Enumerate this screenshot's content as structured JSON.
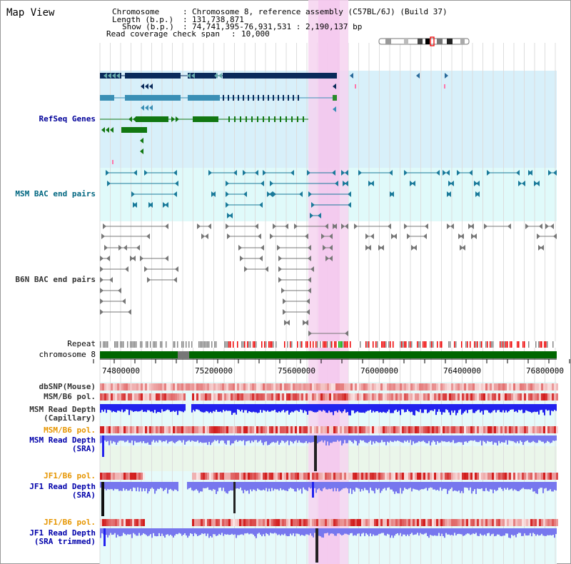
{
  "view": {
    "title": "Map View",
    "chromosome_key": "Chromosome",
    "chromosome_value": "Chromosome 8, reference assembly (C57BL/6J) (Build 37)",
    "length_key": "Length (b.p.)",
    "length_value": "131,738,871",
    "show_key": "Show (b.p.)",
    "show_value": "74,741,395-76,931,531 : 2,190,137 bp",
    "coverage_key": "Read coverage check span",
    "coverage_value": "10,000"
  },
  "tracks": {
    "refseq": "RefSeq Genes",
    "msm_bac": "MSM BAC end pairs",
    "b6n_bac": "B6N BAC end pairs",
    "repeat": "Repeat",
    "chromosome": "chromosome 8",
    "dbsnp": "dbSNP(Mouse)",
    "msm_b6_pol_1": "MSM/B6 pol.",
    "msm_depth_cap_1": "MSM Read Depth",
    "msm_depth_cap_2": "(Capillary)",
    "msm_b6_pol_2": "MSM/B6 pol.",
    "msm_depth_sra_1": "MSM Read Depth",
    "msm_depth_sra_2": "(SRA)",
    "jf1_b6_pol_1": "JF1/B6 pol.",
    "jf1_depth_sra_1": "JF1 Read Depth",
    "jf1_depth_sra_2": "(SRA)",
    "jf1_b6_pol_2": "JF1/B6 pol.",
    "jf1_depth_trim_1": "JF1 Read Depth",
    "jf1_depth_trim_2": "(SRA trimmed)"
  },
  "axis": {
    "ticks": [
      "74800000",
      "75200000",
      "75600000",
      "76000000",
      "76400000",
      "76800000"
    ]
  },
  "colors": {
    "refseq_bg": "#d8f0fa",
    "msm_bac_bg": "#e0fafa",
    "highlight": "#f6d4f0",
    "refseq_label": "#000099",
    "msm_label": "#006680",
    "b6n_label": "#333333",
    "orange_label": "#e69500",
    "blue_label": "#0000aa",
    "navy_gene": "#0a2a5a",
    "teal_gene": "#3a8fb5",
    "green_gene": "#117711",
    "chromosome_bar": "#006600",
    "depth_blue": "#2222ee",
    "depth_light": "#7777ee"
  }
}
